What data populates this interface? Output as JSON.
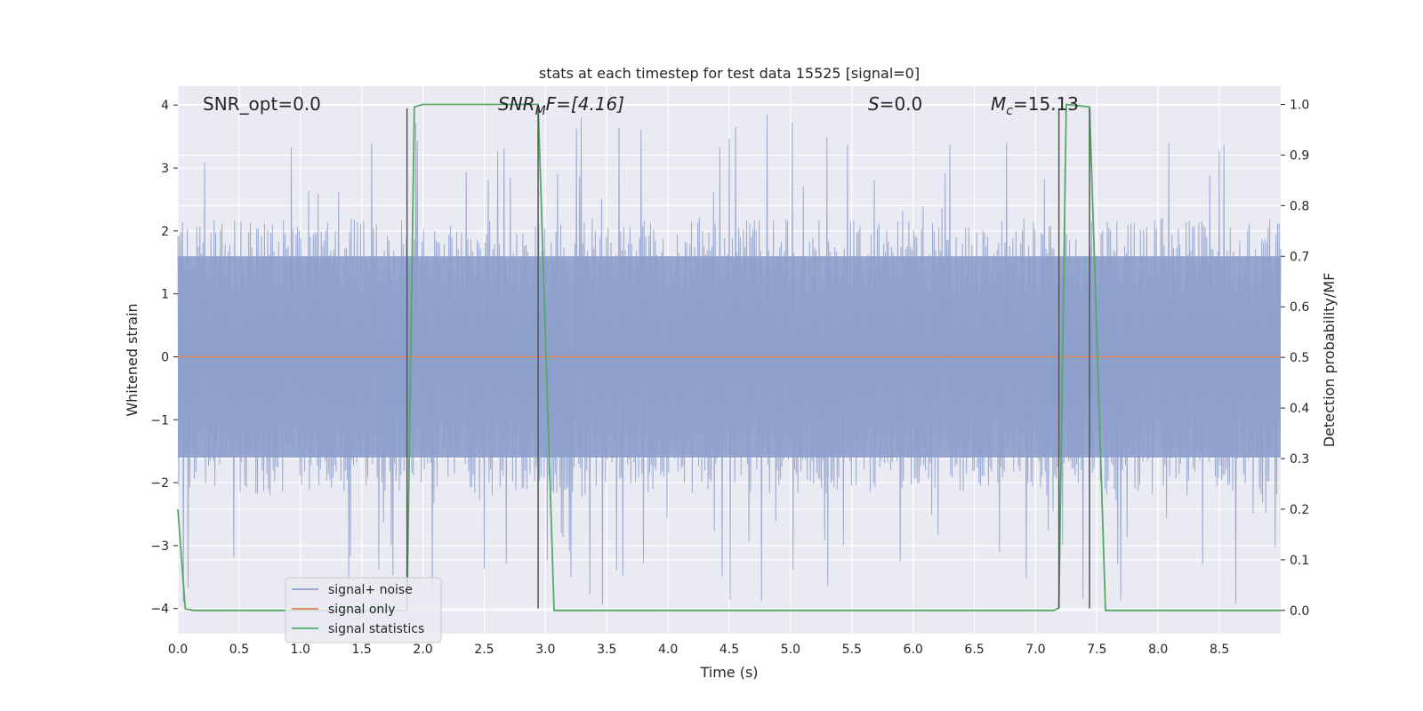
{
  "chart_data": {
    "type": "line",
    "title": "stats at each timestep for test data 15525 [signal=0]",
    "xlabel": "Time (s)",
    "ylabel": "Whitened strain",
    "y2label": "Detection probability/MF",
    "xlim": [
      0.0,
      9.0
    ],
    "ylim": [
      -4.4,
      4.3
    ],
    "y2lim": [
      -0.046,
      1.036
    ],
    "x_ticks": [
      "0.0",
      "0.5",
      "1.0",
      "1.5",
      "2.0",
      "2.5",
      "3.0",
      "3.5",
      "4.0",
      "4.5",
      "5.0",
      "5.5",
      "6.0",
      "6.5",
      "7.0",
      "7.5",
      "8.0",
      "8.5"
    ],
    "y_ticks": [
      "4",
      "3",
      "2",
      "1",
      "0",
      "−1",
      "−2",
      "−3",
      "−4"
    ],
    "y2_ticks": [
      "1.0",
      "0.9",
      "0.8",
      "0.7",
      "0.6",
      "0.5",
      "0.4",
      "0.3",
      "0.2",
      "0.1",
      "0.0"
    ],
    "grid": true,
    "legend_position": "lower-left",
    "annotations": {
      "snr_opt": "SNR_opt=0.0",
      "snr_mf_main": "SNR",
      "snr_mf_sub": "M",
      "snr_mf_rest": "F=[4.16]",
      "s_main": "S",
      "s_rest": "=0.0",
      "mc_main": "M",
      "mc_sub": "c",
      "mc_rest": "=15.13"
    },
    "vertical_lines_x": [
      1.87,
      2.94,
      7.19,
      7.44
    ],
    "series": [
      {
        "name": "signal+ noise",
        "color": "#8c9fcb",
        "axis": "left",
        "noise_envelope": {
          "band_sigma": 0.8,
          "peak_max": 3.95,
          "trough_min": -4.0
        }
      },
      {
        "name": "signal only",
        "color": "#dd8452",
        "axis": "left",
        "x": [
          0.0,
          9.0
        ],
        "y": [
          0.0,
          0.0
        ]
      },
      {
        "name": "signal statistics",
        "color": "#55a868",
        "axis": "right",
        "x": [
          0.0,
          0.06,
          0.13,
          1.87,
          1.93,
          2.0,
          2.94,
          3.07,
          7.15,
          7.19,
          7.25,
          7.44,
          7.57,
          9.0
        ],
        "y": [
          0.2,
          0.003,
          0.0,
          0.0,
          0.995,
          1.0,
          1.0,
          0.0,
          0.0,
          0.005,
          1.0,
          0.995,
          0.0,
          0.0
        ]
      }
    ]
  }
}
